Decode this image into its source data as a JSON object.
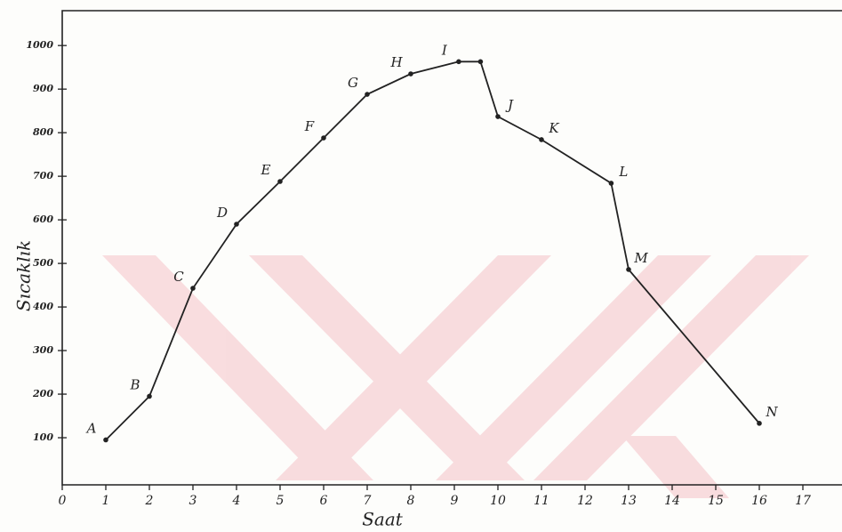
{
  "chart_data": {
    "type": "line",
    "x_label": "Saat",
    "y_label": "Sıcaklık",
    "x": [
      1,
      2,
      3,
      4,
      5,
      6,
      7,
      8,
      9.1,
      9.6,
      10,
      11,
      12.6,
      13,
      16
    ],
    "values": [
      95,
      195,
      443,
      590,
      688,
      788,
      888,
      935,
      963,
      963,
      837,
      784,
      684,
      486,
      133
    ],
    "point_labels": [
      "A",
      "B",
      "C",
      "D",
      "E",
      "F",
      "G",
      "H",
      "I",
      null,
      "J",
      "K",
      "L",
      "M",
      "N"
    ],
    "color": "#222222",
    "xlim": [
      0,
      17.8
    ],
    "ylim": [
      0,
      1080
    ],
    "xticks": [
      0,
      1,
      2,
      3,
      4,
      5,
      6,
      7,
      8,
      9,
      10,
      11,
      12,
      13,
      14,
      15,
      16,
      17
    ],
    "yticks": [
      100,
      200,
      300,
      400,
      500,
      600,
      700,
      800,
      900,
      1000
    ]
  }
}
